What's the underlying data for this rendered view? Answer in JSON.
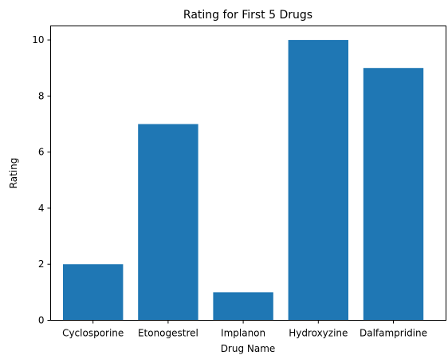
{
  "chart_data": {
    "type": "bar",
    "title": "Rating for First 5 Drugs",
    "xlabel": "Drug Name",
    "ylabel": "Rating",
    "categories": [
      "Cyclosporine",
      "Etonogestrel",
      "Implanon",
      "Hydroxyzine",
      "Dalfampridine"
    ],
    "values": [
      2,
      7,
      1,
      10,
      9
    ],
    "ylim": [
      0,
      10.5
    ],
    "yticks": [
      "0",
      "2",
      "4",
      "6",
      "8",
      "10"
    ],
    "grid": false,
    "bar_color": "#1f77b4"
  }
}
